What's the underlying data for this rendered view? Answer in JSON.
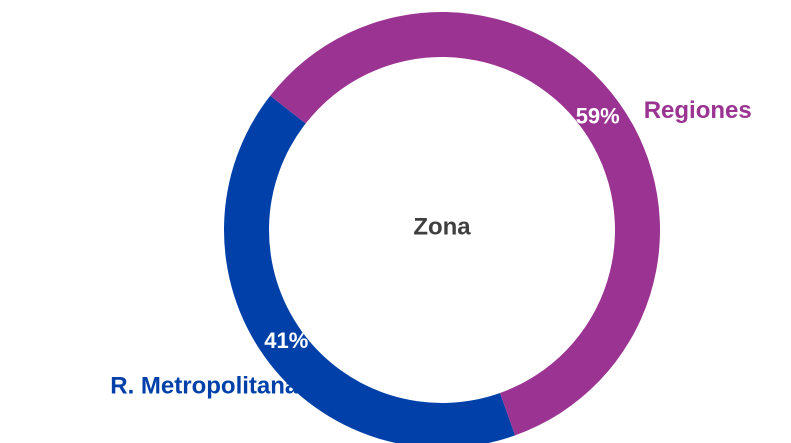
{
  "chart_data": {
    "type": "donut",
    "title": "Zona",
    "categories": [
      "Regiones",
      "R. Metropolitana"
    ],
    "values": [
      59,
      41
    ],
    "value_labels": [
      "59%",
      "41%"
    ],
    "colors": [
      "#9b3393",
      "#0040a8"
    ]
  }
}
